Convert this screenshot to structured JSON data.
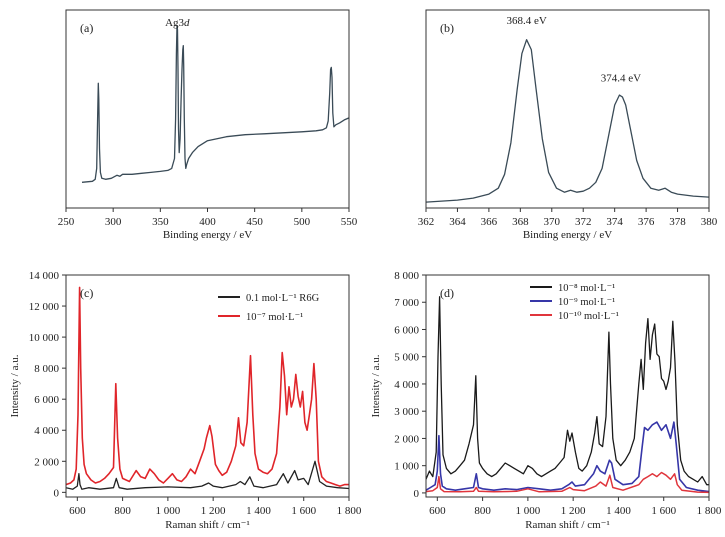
{
  "chart_data": [
    {
      "panel": "(a)",
      "type": "line",
      "xlabel": "Binding energy / eV",
      "ylabel": "",
      "xlim": [
        250,
        550
      ],
      "ylim": [
        0,
        100
      ],
      "xticks": [
        "250",
        "300",
        "350",
        "400",
        "450",
        "500",
        "550"
      ],
      "annotations": [
        {
          "text": "Ag3d",
          "x": 368,
          "y": 92
        }
      ],
      "series": [
        {
          "color": "#3a4b57",
          "lw": 1.3,
          "x": [
            267,
            278,
            281,
            282.5,
            283.5,
            284.2,
            284.8,
            285.5,
            286.5,
            288,
            292,
            298,
            304,
            307,
            310,
            320,
            330,
            340,
            350,
            358,
            362,
            365,
            366.2,
            367,
            367.7,
            368.2,
            368.7,
            369.3,
            370,
            371,
            372,
            373,
            373.8,
            374.3,
            374.8,
            375.4,
            376.2,
            377,
            378,
            380,
            384,
            390,
            400,
            420,
            440,
            460,
            480,
            500,
            515,
            522,
            526,
            528,
            529.5,
            530.5,
            531.2,
            532,
            532.8,
            534,
            536,
            540,
            545,
            550
          ],
          "y": [
            13,
            13.5,
            14.5,
            20,
            45,
            63,
            55,
            30,
            18,
            15,
            14.5,
            15,
            16.5,
            16,
            17,
            17,
            17.5,
            18,
            18.5,
            19,
            20,
            25,
            45,
            78,
            92,
            90,
            70,
            40,
            28,
            35,
            55,
            70,
            80,
            82,
            72,
            45,
            25,
            20,
            22,
            25,
            28,
            31,
            34,
            36,
            37,
            37.5,
            38,
            38.5,
            39,
            39.5,
            40.5,
            44,
            58,
            70,
            71,
            66,
            48,
            41,
            42,
            43,
            44.5,
            45.5
          ]
        }
      ]
    },
    {
      "panel": "(b)",
      "type": "line",
      "xlabel": "Binding energy / eV",
      "ylabel": "",
      "xlim": [
        362,
        380
      ],
      "ylim": [
        0,
        100
      ],
      "xticks": [
        "362",
        "364",
        "366",
        "368",
        "370",
        "372",
        "374",
        "376",
        "378",
        "380"
      ],
      "annotations": [
        {
          "text": "368.4 eV",
          "x": 368.4,
          "y": 93
        },
        {
          "text": "374.4 eV",
          "x": 374.4,
          "y": 64
        }
      ],
      "series": [
        {
          "color": "#3a4b57",
          "lw": 1.3,
          "x": [
            362,
            364,
            365,
            366,
            366.6,
            367,
            367.4,
            367.8,
            368.1,
            368.4,
            368.7,
            369,
            369.4,
            369.8,
            370.3,
            370.8,
            371.2,
            371.6,
            372,
            372.4,
            372.8,
            373.2,
            373.6,
            374,
            374.3,
            374.5,
            374.7,
            375,
            375.4,
            375.8,
            376.3,
            376.8,
            377.2,
            377.6,
            378,
            379,
            380
          ],
          "y": [
            3,
            4,
            5,
            7,
            10,
            17,
            33,
            60,
            78,
            85,
            80,
            60,
            35,
            18,
            10,
            8,
            9,
            8,
            8.5,
            10,
            13,
            20,
            36,
            52,
            57,
            56,
            52,
            40,
            24,
            15,
            10,
            9,
            10,
            8,
            7,
            6,
            5.5
          ]
        }
      ]
    },
    {
      "panel": "(c)",
      "type": "line",
      "xlabel": "Raman shift / cm⁻¹",
      "ylabel": "Intensity / a.u.",
      "xlim": [
        550,
        1800
      ],
      "ylim": [
        -300,
        14000
      ],
      "xticks": [
        "600",
        "800",
        "1 000",
        "1 200",
        "1 400",
        "1 600",
        "1 800"
      ],
      "yticks": [
        "0",
        "2 000",
        "4 000",
        "6 000",
        "8 000",
        "10 000",
        "12 000",
        "14 000"
      ],
      "legend_position": "top-right",
      "series": [
        {
          "name": "0.1 mol·L⁻¹ R6G",
          "color": "#222222",
          "lw": 1.3,
          "x": [
            550,
            580,
            600,
            607,
            612,
            620,
            650,
            700,
            760,
            772,
            785,
            820,
            900,
            1000,
            1100,
            1150,
            1180,
            1200,
            1240,
            1300,
            1320,
            1340,
            1362,
            1380,
            1420,
            1480,
            1510,
            1530,
            1560,
            1575,
            1600,
            1620,
            1650,
            1670,
            1700,
            1750,
            1800
          ],
          "y": [
            300,
            200,
            400,
            1200,
            500,
            200,
            300,
            200,
            300,
            900,
            300,
            200,
            300,
            350,
            300,
            400,
            600,
            400,
            300,
            500,
            700,
            500,
            1000,
            400,
            300,
            500,
            1200,
            600,
            1400,
            800,
            900,
            500,
            2000,
            700,
            400,
            300,
            250
          ]
        },
        {
          "name": "10⁻⁷ mol·L⁻¹",
          "color": "#e0252a",
          "lw": 1.6,
          "x": [
            550,
            570,
            585,
            595,
            603,
            610,
            615,
            622,
            630,
            640,
            660,
            680,
            700,
            720,
            740,
            760,
            770,
            778,
            788,
            800,
            830,
            860,
            880,
            900,
            920,
            940,
            960,
            980,
            1000,
            1020,
            1040,
            1060,
            1080,
            1100,
            1120,
            1140,
            1160,
            1170,
            1185,
            1195,
            1210,
            1225,
            1240,
            1260,
            1280,
            1300,
            1312,
            1322,
            1335,
            1350,
            1365,
            1375,
            1385,
            1400,
            1420,
            1440,
            1460,
            1480,
            1495,
            1505,
            1515,
            1525,
            1535,
            1545,
            1555,
            1565,
            1575,
            1585,
            1595,
            1605,
            1615,
            1625,
            1635,
            1645,
            1655,
            1665,
            1680,
            1700,
            1720,
            1740,
            1760,
            1780,
            1800
          ],
          "y": [
            500,
            600,
            800,
            1500,
            5000,
            13200,
            8000,
            3500,
            1800,
            1200,
            800,
            600,
            700,
            900,
            1200,
            1600,
            7000,
            3500,
            1500,
            900,
            700,
            1400,
            1000,
            900,
            1500,
            1200,
            800,
            600,
            900,
            1200,
            800,
            700,
            1000,
            1500,
            1200,
            2000,
            2800,
            3500,
            4300,
            3600,
            1800,
            1400,
            1100,
            1300,
            2000,
            3000,
            4800,
            3200,
            3000,
            4500,
            8800,
            5000,
            2500,
            1500,
            1300,
            1200,
            1500,
            2500,
            5500,
            9000,
            7500,
            5000,
            6800,
            5500,
            6000,
            7600,
            6200,
            5500,
            6500,
            4500,
            4000,
            5000,
            6000,
            8300,
            6000,
            2000,
            1000,
            700,
            600,
            500,
            400,
            500,
            500
          ]
        }
      ]
    },
    {
      "panel": "(d)",
      "type": "line",
      "xlabel": "Raman shift / cm⁻¹",
      "ylabel": "Intensity / a.u.",
      "xlim": [
        550,
        1800
      ],
      "ylim": [
        -150,
        8000
      ],
      "xticks": [
        "600",
        "800",
        "1 000",
        "1 200",
        "1 400",
        "1 600",
        "1 800"
      ],
      "yticks": [
        "0",
        "1 000",
        "2 000",
        "3 000",
        "4 000",
        "5 000",
        "6 000",
        "7 000",
        "8 000"
      ],
      "legend_position": "top-center",
      "series": [
        {
          "name": "10⁻⁸ mol·L⁻¹",
          "color": "#1a1a1a",
          "lw": 1.3,
          "x": [
            550,
            565,
            580,
            595,
            603,
            610,
            617,
            625,
            640,
            660,
            680,
            700,
            720,
            740,
            760,
            770,
            778,
            786,
            800,
            820,
            840,
            860,
            880,
            900,
            920,
            940,
            960,
            980,
            1000,
            1020,
            1040,
            1060,
            1080,
            1100,
            1120,
            1140,
            1160,
            1175,
            1185,
            1195,
            1210,
            1225,
            1240,
            1260,
            1280,
            1295,
            1305,
            1315,
            1330,
            1345,
            1358,
            1365,
            1375,
            1390,
            1410,
            1430,
            1450,
            1470,
            1490,
            1500,
            1510,
            1520,
            1530,
            1540,
            1550,
            1560,
            1570,
            1580,
            1590,
            1600,
            1610,
            1620,
            1630,
            1640,
            1650,
            1660,
            1675,
            1690,
            1710,
            1730,
            1750,
            1770,
            1790,
            1800
          ],
          "y": [
            500,
            800,
            600,
            1500,
            5000,
            7200,
            4000,
            1400,
            900,
            700,
            800,
            1000,
            1200,
            1800,
            2500,
            4300,
            2000,
            1100,
            900,
            700,
            600,
            700,
            900,
            1100,
            1000,
            900,
            800,
            700,
            1000,
            900,
            700,
            600,
            700,
            800,
            900,
            1100,
            1300,
            2300,
            1900,
            2200,
            1500,
            900,
            800,
            1000,
            1500,
            2200,
            2800,
            1800,
            1700,
            2800,
            5900,
            4000,
            2000,
            1200,
            1000,
            1200,
            1500,
            2000,
            4000,
            4900,
            3800,
            5500,
            6400,
            4900,
            5800,
            6200,
            5100,
            5000,
            4200,
            4100,
            3800,
            4100,
            4600,
            6300,
            4800,
            2500,
            1200,
            800,
            600,
            500,
            400,
            600,
            300,
            300
          ]
        },
        {
          "name": "10⁻⁹ mol·L⁻¹",
          "color": "#3636a8",
          "lw": 1.6,
          "x": [
            550,
            570,
            590,
            600,
            607,
            614,
            622,
            640,
            680,
            720,
            760,
            772,
            782,
            800,
            850,
            900,
            950,
            1000,
            1050,
            1100,
            1150,
            1180,
            1195,
            1210,
            1250,
            1290,
            1305,
            1320,
            1340,
            1360,
            1370,
            1385,
            1420,
            1460,
            1490,
            1505,
            1515,
            1530,
            1550,
            1570,
            1590,
            1610,
            1630,
            1645,
            1655,
            1670,
            1700,
            1750,
            1800
          ],
          "y": [
            100,
            200,
            300,
            800,
            2100,
            700,
            250,
            150,
            100,
            150,
            200,
            700,
            200,
            150,
            100,
            150,
            120,
            200,
            150,
            100,
            150,
            300,
            400,
            250,
            300,
            700,
            1000,
            800,
            700,
            1200,
            1100,
            500,
            300,
            350,
            600,
            1700,
            2400,
            2300,
            2500,
            2600,
            2300,
            2500,
            2000,
            2600,
            1800,
            500,
            200,
            100,
            50
          ]
        },
        {
          "name": "10⁻¹⁰ mol·L⁻¹",
          "color": "#e0353c",
          "lw": 1.5,
          "x": [
            550,
            580,
            600,
            607,
            614,
            630,
            700,
            760,
            772,
            782,
            850,
            950,
            1000,
            1050,
            1150,
            1185,
            1200,
            1250,
            1300,
            1320,
            1345,
            1362,
            1375,
            1420,
            1490,
            1510,
            1530,
            1550,
            1570,
            1590,
            1610,
            1630,
            1648,
            1660,
            1680,
            1750,
            1800
          ],
          "y": [
            50,
            80,
            200,
            600,
            150,
            50,
            40,
            60,
            200,
            60,
            40,
            60,
            150,
            40,
            60,
            200,
            120,
            80,
            250,
            400,
            250,
            650,
            200,
            100,
            300,
            500,
            600,
            700,
            600,
            750,
            650,
            500,
            700,
            300,
            100,
            30,
            20
          ]
        }
      ]
    }
  ]
}
